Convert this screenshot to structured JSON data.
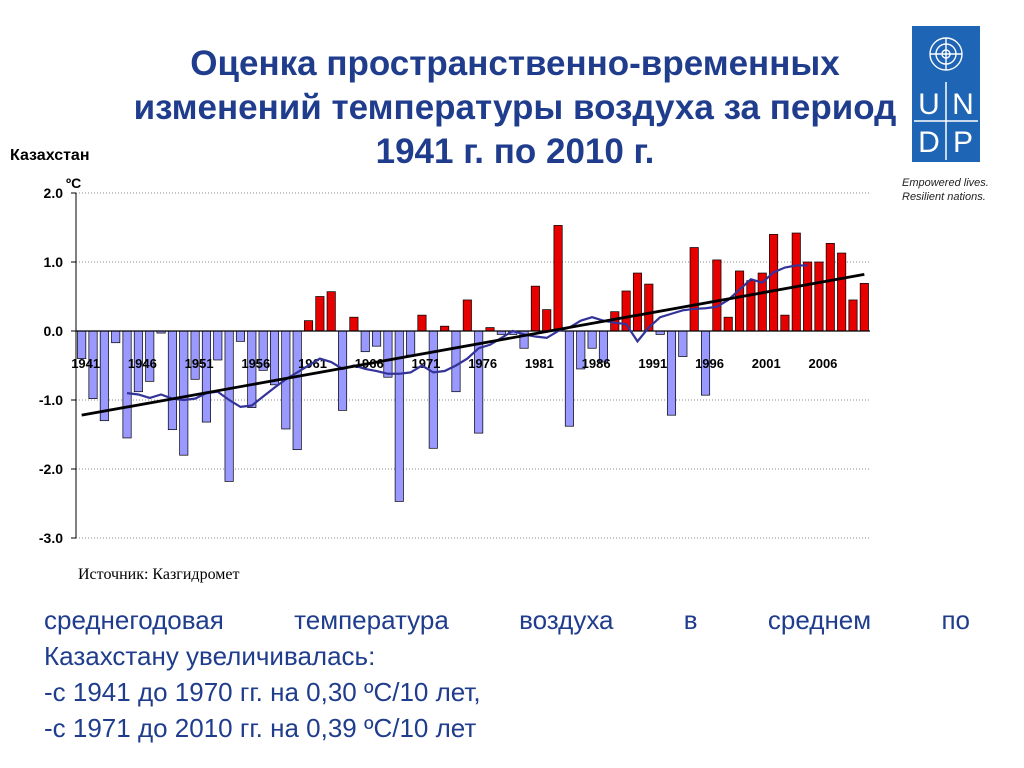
{
  "title": "Оценка пространственно-временных изменений температуры воздуха за период 1941 г. по 2010 г.",
  "logo": {
    "letters": [
      "U",
      "N",
      "D",
      "P"
    ],
    "tagline": [
      "Empowered lives.",
      "Resilient nations."
    ]
  },
  "region_label": "Казахстан",
  "unit_label": "ºС",
  "source": "Источник: Казгидромет",
  "summary": {
    "line1": "среднегодовая температура воздуха в среднем по",
    "line2": "Казахстану увеличивалась:",
    "line3": "-с 1941 до 1970 гг. на 0,30 ºС/10 лет,",
    "line4": "-с 1971 до 2010 гг. на 0,39 ºС/10 лет"
  },
  "colors": {
    "positive": "#e60000",
    "negative": "#9999ff",
    "moving_avg": "#33339a",
    "trend": "#000000",
    "title": "#1f3d8c"
  },
  "chart_data": {
    "type": "bar",
    "x": [
      1941,
      1942,
      1943,
      1944,
      1945,
      1946,
      1947,
      1948,
      1949,
      1950,
      1951,
      1952,
      1953,
      1954,
      1955,
      1956,
      1957,
      1958,
      1959,
      1960,
      1961,
      1962,
      1963,
      1964,
      1965,
      1966,
      1967,
      1968,
      1969,
      1970,
      1971,
      1972,
      1973,
      1974,
      1975,
      1976,
      1977,
      1978,
      1979,
      1980,
      1981,
      1982,
      1983,
      1984,
      1985,
      1986,
      1987,
      1988,
      1989,
      1990,
      1991,
      1992,
      1993,
      1994,
      1995,
      1996,
      1997,
      1998,
      1999,
      2000,
      2001,
      2002,
      2003,
      2004,
      2005,
      2006,
      2007,
      2008,
      2009,
      2010
    ],
    "values": [
      -0.4,
      -0.98,
      -1.3,
      -0.17,
      -1.55,
      -0.88,
      -0.73,
      -0.03,
      -1.43,
      -1.8,
      -0.7,
      -1.32,
      -0.42,
      -2.18,
      -0.15,
      -1.11,
      -0.57,
      -0.78,
      -1.42,
      -1.72,
      0.15,
      0.5,
      0.57,
      -1.15,
      0.2,
      -0.3,
      -0.22,
      -0.67,
      -2.47,
      -0.35,
      0.23,
      -1.7,
      0.07,
      -0.88,
      0.45,
      -1.48,
      0.05,
      -0.05,
      -0.05,
      -0.25,
      0.65,
      0.31,
      1.53,
      -1.38,
      -0.55,
      -0.25,
      -0.45,
      0.28,
      0.58,
      0.84,
      0.68,
      -0.05,
      -1.22,
      -0.37,
      1.21,
      -0.93,
      1.03,
      0.2,
      0.87,
      0.73,
      0.84,
      1.4,
      0.23,
      1.42,
      1.0,
      1.0,
      1.27,
      1.13,
      0.45,
      0.69
    ],
    "moving_average": [
      [
        1945,
        -0.9
      ],
      [
        1946,
        -0.92
      ],
      [
        1947,
        -0.97
      ],
      [
        1948,
        -0.92
      ],
      [
        1949,
        -0.98
      ],
      [
        1950,
        -1.0
      ],
      [
        1951,
        -0.98
      ],
      [
        1952,
        -0.9
      ],
      [
        1953,
        -0.88
      ],
      [
        1954,
        -1.0
      ],
      [
        1955,
        -1.1
      ],
      [
        1956,
        -1.08
      ],
      [
        1957,
        -0.95
      ],
      [
        1958,
        -0.82
      ],
      [
        1959,
        -0.7
      ],
      [
        1960,
        -0.6
      ],
      [
        1961,
        -0.5
      ],
      [
        1962,
        -0.4
      ],
      [
        1963,
        -0.45
      ],
      [
        1964,
        -0.55
      ],
      [
        1965,
        -0.5
      ],
      [
        1966,
        -0.55
      ],
      [
        1967,
        -0.58
      ],
      [
        1968,
        -0.62
      ],
      [
        1969,
        -0.62
      ],
      [
        1970,
        -0.6
      ],
      [
        1971,
        -0.5
      ],
      [
        1972,
        -0.6
      ],
      [
        1973,
        -0.58
      ],
      [
        1974,
        -0.5
      ],
      [
        1975,
        -0.4
      ],
      [
        1976,
        -0.25
      ],
      [
        1977,
        -0.2
      ],
      [
        1978,
        -0.1
      ],
      [
        1979,
        0.0
      ],
      [
        1980,
        -0.05
      ],
      [
        1981,
        -0.08
      ],
      [
        1982,
        -0.1
      ],
      [
        1983,
        0.0
      ],
      [
        1984,
        0.05
      ],
      [
        1985,
        0.15
      ],
      [
        1986,
        0.2
      ],
      [
        1987,
        0.15
      ],
      [
        1988,
        0.12
      ],
      [
        1989,
        0.1
      ],
      [
        1990,
        -0.15
      ],
      [
        1991,
        0.05
      ],
      [
        1992,
        0.2
      ],
      [
        1993,
        0.25
      ],
      [
        1994,
        0.3
      ],
      [
        1995,
        0.32
      ],
      [
        1996,
        0.33
      ],
      [
        1997,
        0.35
      ],
      [
        1998,
        0.45
      ],
      [
        1999,
        0.6
      ],
      [
        2000,
        0.75
      ],
      [
        2001,
        0.7
      ],
      [
        2002,
        0.85
      ],
      [
        2003,
        0.92
      ],
      [
        2004,
        0.95
      ],
      [
        2005,
        0.95
      ]
    ],
    "trend": {
      "start": [
        1941,
        -1.22
      ],
      "end": [
        2010,
        0.82
      ]
    },
    "ylim": [
      -3.0,
      2.0
    ],
    "yticks": [
      2.0,
      1.0,
      0.0,
      -1.0,
      -2.0,
      -3.0
    ],
    "ytick_labels": [
      "2.0",
      "1.0",
      "0.0",
      "-1.0",
      "-2.0",
      "-3.0"
    ],
    "xticks": [
      1941,
      1946,
      1951,
      1956,
      1961,
      1966,
      1971,
      1976,
      1981,
      1986,
      1991,
      1996,
      2001,
      2006
    ],
    "xtick_labels": [
      "1941",
      "1946",
      "1951",
      "1956",
      "1961",
      "1966",
      "1971",
      "1976",
      "1981",
      "1986",
      "1991",
      "1996",
      "2001",
      "2006"
    ],
    "grid": true
  }
}
